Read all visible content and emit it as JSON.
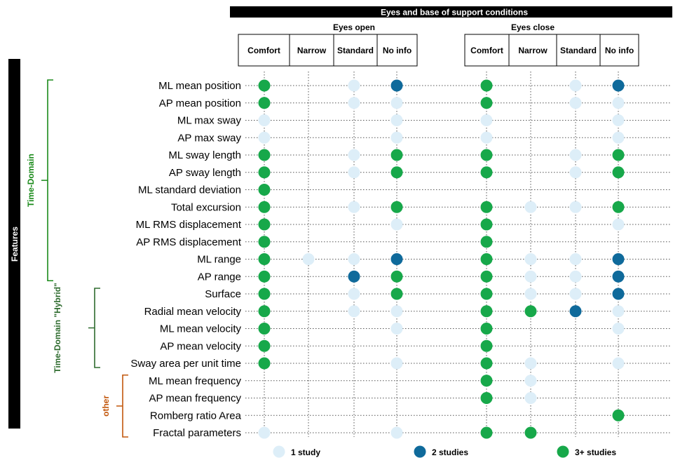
{
  "chart_data": {
    "type": "scatter",
    "title": "Eyes and base of support conditions",
    "y_axis_label": "Features",
    "condition_groups": [
      {
        "label": "Eyes open",
        "columns": [
          "Comfort",
          "Narrow",
          "Standard",
          "No info"
        ]
      },
      {
        "label": "Eyes close",
        "columns": [
          "Comfort",
          "Narrow",
          "Standard",
          "No info"
        ]
      }
    ],
    "feature_groups": [
      {
        "label": "Time-Domain",
        "color": "#1a8a1a",
        "rows": [
          0,
          11
        ]
      },
      {
        "label": "Time-Domain \"Hybrid\"",
        "color": "#2e6b2e",
        "rows": [
          12,
          16
        ]
      },
      {
        "label": "other",
        "color": "#c2570c",
        "rows": [
          17,
          20
        ]
      }
    ],
    "features": [
      "ML mean position",
      "AP mean position",
      "ML max sway",
      "AP max sway",
      "ML sway length",
      "AP sway length",
      "ML standard deviation",
      "Total excursion",
      "ML RMS displacement",
      "AP RMS displacement",
      "ML range",
      "AP range",
      "Surface",
      "Radial mean velocity",
      "ML mean velocity",
      "AP mean velocity",
      "Sway area per unit time",
      "ML mean frequency",
      "AP mean frequency",
      "Romberg ratio Area",
      "Fractal parameters"
    ],
    "legend": [
      {
        "level": 1,
        "label": "1 study",
        "color": "#ddeef8"
      },
      {
        "level": 2,
        "label": "2 studies",
        "color": "#0f6a9b"
      },
      {
        "level": 3,
        "label": "3+ studies",
        "color": "#17a84a"
      }
    ],
    "values": [
      [
        3,
        0,
        1,
        2,
        3,
        0,
        1,
        2
      ],
      [
        3,
        0,
        1,
        1,
        3,
        0,
        1,
        1
      ],
      [
        1,
        0,
        0,
        1,
        1,
        0,
        0,
        1
      ],
      [
        1,
        0,
        0,
        1,
        1,
        0,
        0,
        1
      ],
      [
        3,
        0,
        1,
        3,
        3,
        0,
        1,
        3
      ],
      [
        3,
        0,
        1,
        3,
        3,
        0,
        1,
        3
      ],
      [
        3,
        0,
        0,
        0,
        0,
        0,
        0,
        0
      ],
      [
        3,
        0,
        1,
        3,
        3,
        1,
        1,
        3
      ],
      [
        3,
        0,
        0,
        1,
        3,
        0,
        0,
        1
      ],
      [
        3,
        0,
        0,
        0,
        3,
        0,
        0,
        0
      ],
      [
        3,
        1,
        1,
        2,
        3,
        1,
        1,
        2
      ],
      [
        3,
        0,
        2,
        3,
        3,
        1,
        1,
        2
      ],
      [
        3,
        0,
        1,
        3,
        3,
        1,
        1,
        2
      ],
      [
        3,
        0,
        1,
        1,
        3,
        3,
        2,
        1
      ],
      [
        3,
        0,
        0,
        1,
        3,
        0,
        0,
        1
      ],
      [
        3,
        0,
        0,
        0,
        3,
        0,
        0,
        0
      ],
      [
        3,
        0,
        0,
        1,
        3,
        1,
        0,
        1
      ],
      [
        0,
        0,
        0,
        0,
        3,
        1,
        0,
        0
      ],
      [
        0,
        0,
        0,
        0,
        3,
        1,
        0,
        0
      ],
      [
        0,
        0,
        0,
        0,
        0,
        0,
        0,
        3
      ],
      [
        1,
        0,
        0,
        1,
        3,
        3,
        0,
        0
      ]
    ]
  }
}
